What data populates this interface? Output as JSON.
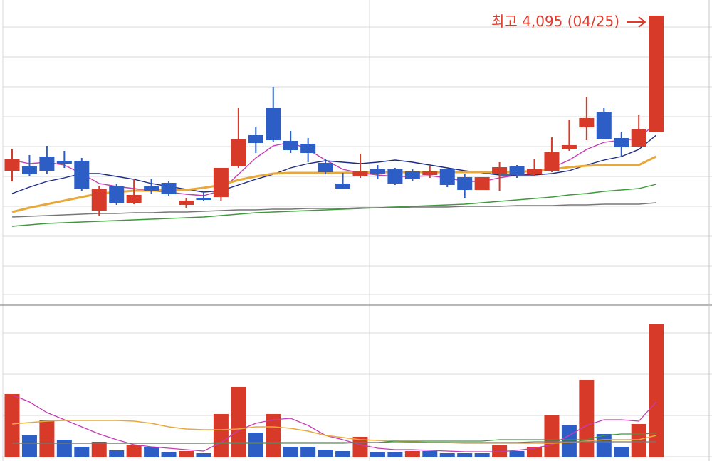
{
  "chart_data": {
    "type": "candlestick",
    "annotation": "최고 4,095 (04/25)",
    "ylim": [
      2130,
      4205
    ],
    "up_color": "#d83a2a",
    "down_color": "#2d5ec6",
    "open": [
      3005,
      3035,
      3105,
      3075,
      3075,
      2725,
      2895,
      2780,
      2895,
      2920,
      2765,
      2815,
      2820,
      3035,
      3255,
      3445,
      3215,
      3195,
      3060,
      2915,
      2970,
      3015,
      3015,
      3000,
      2975,
      3020,
      2960,
      2870,
      2985,
      3035,
      2980,
      3005,
      3160,
      3310,
      3420,
      3235,
      3175,
      3280
    ],
    "high": [
      3155,
      3115,
      3180,
      3145,
      3095,
      2895,
      2915,
      2945,
      2945,
      2930,
      2815,
      2855,
      3025,
      3445,
      3315,
      3595,
      3285,
      3235,
      3085,
      2990,
      3125,
      3045,
      3025,
      3015,
      3035,
      3030,
      2980,
      2960,
      3065,
      3045,
      3085,
      3240,
      3365,
      3525,
      3445,
      3275,
      3395,
      4095
    ],
    "low": [
      2930,
      2965,
      2985,
      3025,
      2865,
      2685,
      2765,
      2770,
      2845,
      2830,
      2745,
      2790,
      2795,
      3025,
      3130,
      3205,
      3130,
      3065,
      2980,
      2880,
      2955,
      2945,
      2905,
      2935,
      2955,
      2890,
      2810,
      2870,
      2865,
      2955,
      2965,
      2995,
      3145,
      3220,
      3225,
      3105,
      3170,
      3280
    ],
    "close": [
      3085,
      2980,
      3005,
      3055,
      2880,
      2880,
      2780,
      2835,
      2865,
      2840,
      2795,
      2800,
      3025,
      3225,
      3200,
      3220,
      3150,
      3130,
      2995,
      2880,
      3000,
      2985,
      2915,
      2945,
      3000,
      2905,
      2870,
      2960,
      3030,
      2975,
      3015,
      3135,
      3185,
      3375,
      3230,
      3170,
      3300,
      4095
    ],
    "moving_averages": [
      {
        "color": "#c63cb2",
        "values": [
          3080,
          3055,
          3065,
          3045,
          2985,
          2915,
          2895,
          2880,
          2865,
          2855,
          2840,
          2830,
          2865,
          2980,
          3095,
          3180,
          3205,
          3155,
          3080,
          3015,
          2990,
          2975,
          2965,
          2965,
          2970,
          2955,
          2930,
          2930,
          2955,
          2975,
          2985,
          3025,
          3080,
          3155,
          3205,
          3220,
          3230,
          3345
        ]
      },
      {
        "color": "#1c2a86",
        "values": [
          2845,
          2890,
          2930,
          2955,
          2985,
          2985,
          2965,
          2945,
          2915,
          2895,
          2875,
          2855,
          2865,
          2905,
          2945,
          2980,
          3025,
          3055,
          3075,
          3065,
          3055,
          3065,
          3080,
          3065,
          3045,
          3025,
          3005,
          2990,
          2975,
          2975,
          2975,
          2985,
          3005,
          3045,
          3080,
          3105,
          3155,
          3255
        ]
      },
      {
        "color": "#e8a83a",
        "values": [
          2715,
          2745,
          2770,
          2795,
          2820,
          2845,
          2855,
          2865,
          2865,
          2870,
          2870,
          2885,
          2905,
          2940,
          2965,
          2985,
          2990,
          2990,
          2990,
          2990,
          2995,
          2995,
          2995,
          2995,
          2995,
          2995,
          2995,
          2995,
          2995,
          2995,
          3005,
          3015,
          3030,
          3040,
          3045,
          3045,
          3045,
          3105
        ]
      },
      {
        "color": "#3c9a3c",
        "values": [
          2615,
          2625,
          2635,
          2640,
          2645,
          2650,
          2655,
          2660,
          2665,
          2670,
          2675,
          2680,
          2690,
          2700,
          2710,
          2715,
          2720,
          2725,
          2730,
          2735,
          2740,
          2745,
          2750,
          2755,
          2760,
          2765,
          2770,
          2780,
          2790,
          2800,
          2810,
          2820,
          2835,
          2845,
          2860,
          2870,
          2880,
          2910
        ]
      },
      {
        "color": "#777777",
        "values": [
          2680,
          2685,
          2690,
          2695,
          2700,
          2705,
          2705,
          2710,
          2710,
          2715,
          2715,
          2720,
          2725,
          2730,
          2730,
          2735,
          2735,
          2740,
          2740,
          2740,
          2745,
          2745,
          2745,
          2750,
          2750,
          2750,
          2755,
          2755,
          2755,
          2760,
          2760,
          2760,
          2765,
          2765,
          2770,
          2770,
          2770,
          2780
        ]
      }
    ],
    "volume": {
      "ylim": [
        0,
        213
      ],
      "values": [
        89,
        31,
        52,
        25,
        15,
        22,
        10,
        18,
        15,
        8,
        9,
        6,
        61,
        99,
        35,
        61,
        15,
        15,
        11,
        9,
        29,
        7,
        7,
        9,
        9,
        6,
        6,
        6,
        17,
        9,
        15,
        59,
        45,
        109,
        33,
        15,
        47,
        187
      ],
      "colors": [
        "#d83a2a",
        "#2d5ec6",
        "#d83a2a",
        "#2d5ec6",
        "#2d5ec6",
        "#d83a2a",
        "#2d5ec6",
        "#d83a2a",
        "#2d5ec6",
        "#2d5ec6",
        "#d83a2a",
        "#2d5ec6",
        "#d83a2a",
        "#d83a2a",
        "#2d5ec6",
        "#d83a2a",
        "#2d5ec6",
        "#2d5ec6",
        "#2d5ec6",
        "#2d5ec6",
        "#d83a2a",
        "#2d5ec6",
        "#2d5ec6",
        "#d83a2a",
        "#2d5ec6",
        "#2d5ec6",
        "#2d5ec6",
        "#2d5ec6",
        "#d83a2a",
        "#2d5ec6",
        "#d83a2a",
        "#d83a2a",
        "#2d5ec6",
        "#d83a2a",
        "#2d5ec6",
        "#2d5ec6",
        "#d83a2a",
        "#d83a2a"
      ],
      "moving_averages": [
        {
          "color": "#c63cb2",
          "values": [
            88,
            78,
            63,
            53,
            43,
            33,
            25,
            18,
            15,
            13,
            11,
            9,
            21,
            38,
            48,
            53,
            55,
            45,
            31,
            25,
            18,
            13,
            11,
            11,
            10,
            9,
            8,
            8,
            8,
            10,
            13,
            18,
            31,
            45,
            53,
            53,
            51,
            78
          ]
        },
        {
          "color": "#e8a83a",
          "values": [
            47,
            49,
            51,
            52,
            52,
            52,
            52,
            51,
            48,
            43,
            40,
            39,
            39,
            40,
            43,
            43,
            41,
            37,
            31,
            28,
            25,
            24,
            23,
            22,
            21,
            21,
            20,
            20,
            20,
            20,
            20,
            20,
            21,
            23,
            25,
            25,
            25,
            31
          ]
        },
        {
          "color": "#3c9a3c",
          "values": [
            20,
            20,
            20,
            20,
            20,
            20,
            20,
            20,
            20,
            20,
            20,
            20,
            21,
            21,
            21,
            21,
            21,
            21,
            21,
            21,
            21,
            21,
            23,
            23,
            23,
            23,
            23,
            23,
            25,
            25,
            25,
            25,
            25,
            25,
            31,
            33,
            33,
            34
          ]
        },
        {
          "color": "#777777",
          "values": [
            20,
            20,
            20,
            20,
            20,
            20,
            20,
            20,
            20,
            20,
            20,
            20,
            20,
            20,
            20,
            20,
            20,
            20,
            20,
            20,
            21,
            21,
            21,
            21,
            21,
            21,
            21,
            21,
            21,
            21,
            22,
            22,
            22,
            22,
            22,
            22,
            22,
            22
          ]
        }
      ]
    }
  }
}
